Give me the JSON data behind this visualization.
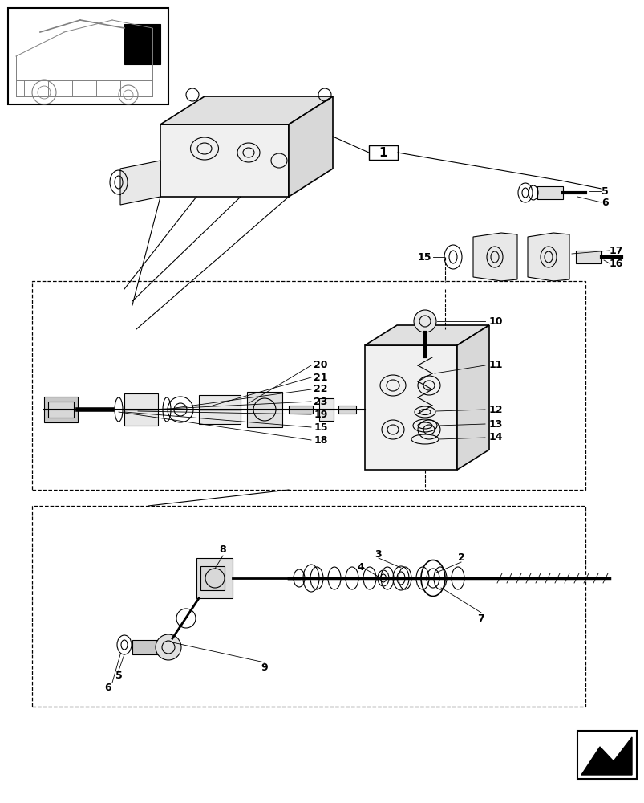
{
  "bg_color": "#ffffff",
  "line_color": "#000000",
  "gray_color": "#888888",
  "light_gray": "#cccccc"
}
